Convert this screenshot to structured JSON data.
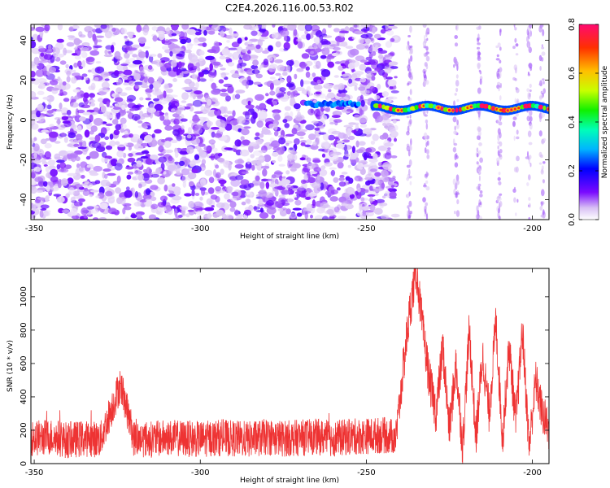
{
  "chart_data": [
    {
      "type": "heatmap",
      "title": "C2E4.2026.116.00.53.R02",
      "xlabel": "Height of straight line (km)",
      "ylabel": "Frequency (Hz)",
      "xlim": [
        -351,
        -195
      ],
      "ylim": [
        -50,
        48
      ],
      "x_ticks": [
        -350,
        -300,
        -250,
        -200
      ],
      "y_ticks": [
        -40,
        -20,
        0,
        20,
        40
      ],
      "colorbar": {
        "label": "Normalized spectral amplitude",
        "range": [
          0,
          0.8
        ],
        "ticks": [
          0.0,
          0.2,
          0.4,
          0.6,
          0.8
        ],
        "tick_labels": [
          "0.0",
          "0.2",
          "0.4",
          "0.6",
          "0.8"
        ]
      },
      "features": [
        {
          "name": "noise-field",
          "x_range": [
            -351,
            -241
          ],
          "freq_range": [
            -50,
            48
          ],
          "amplitude_range": [
            0.0,
            0.15
          ]
        },
        {
          "name": "weak-signal-band",
          "x_range": [
            -268,
            -252
          ],
          "frequency": 8,
          "amplitude": 0.2
        },
        {
          "name": "strong-signal-band",
          "x_range": [
            -248,
            -195
          ],
          "frequency": 6,
          "amplitude_range": [
            0.2,
            0.8
          ]
        }
      ]
    },
    {
      "type": "line",
      "xlabel": "Height of straight line (km)",
      "ylabel": "SNR (10 * v/v)",
      "xlim": [
        -351,
        -195
      ],
      "ylim": [
        0,
        1170
      ],
      "x_ticks": [
        -350,
        -300,
        -250,
        -200
      ],
      "y_ticks": [
        0,
        200,
        400,
        600,
        800,
        1000
      ],
      "series": [
        {
          "name": "SNR",
          "color": "#ee3333",
          "description": "noisy baseline ~50-350 from -351 to -241 km with spike ~480 near -324 km; sharp rise at -240 km, peak ~1170 at -235 km, then oscillating 0-900",
          "x": [
            -351,
            -345,
            -340,
            -335,
            -330,
            -324,
            -320,
            -315,
            -310,
            -305,
            -300,
            -295,
            -290,
            -285,
            -280,
            -275,
            -270,
            -265,
            -260,
            -255,
            -250,
            -245,
            -241,
            -239,
            -237,
            -235,
            -233,
            -231,
            -229,
            -227,
            -225,
            -223,
            -221,
            -219,
            -217,
            -215,
            -213,
            -211,
            -209,
            -207,
            -205,
            -203,
            -201,
            -199,
            -197,
            -195
          ],
          "y": [
            150,
            160,
            140,
            150,
            145,
            480,
            150,
            145,
            155,
            150,
            145,
            155,
            150,
            145,
            160,
            150,
            155,
            160,
            150,
            160,
            165,
            170,
            160,
            550,
            900,
            1170,
            800,
            500,
            300,
            700,
            200,
            600,
            100,
            800,
            150,
            650,
            300,
            850,
            150,
            700,
            250,
            800,
            100,
            500,
            300,
            200
          ]
        }
      ]
    }
  ]
}
